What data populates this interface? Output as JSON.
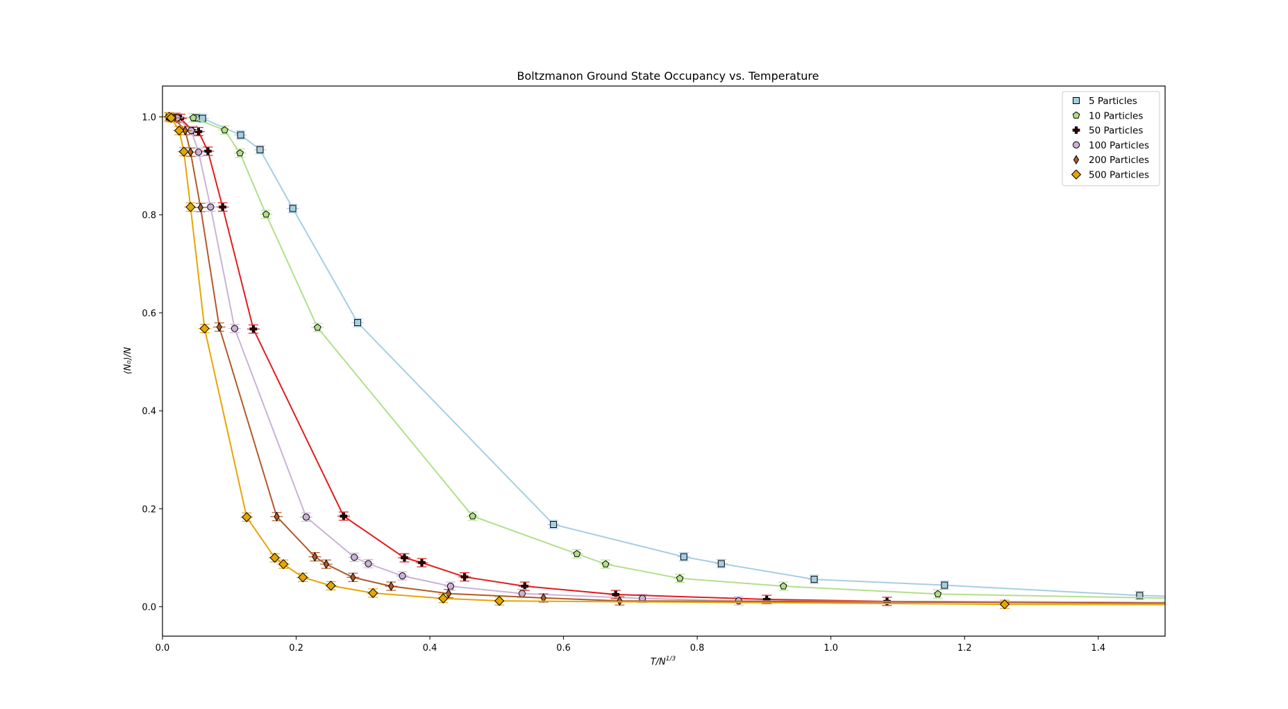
{
  "chart_data": {
    "type": "line",
    "title": "Boltzmanon Ground State Occupancy vs. Temperature",
    "xlabel_main": "T/N",
    "xlabel_sup": "1/3",
    "ylabel": "⟨N₀⟩/N",
    "xlim": [
      0.0,
      1.5
    ],
    "ylim": [
      -0.06,
      1.063
    ],
    "xticks": [
      "0.0",
      "0.2",
      "0.4",
      "0.6",
      "0.8",
      "1.0",
      "1.2",
      "1.4"
    ],
    "yticks": [
      "0.0",
      "0.2",
      "0.4",
      "0.6",
      "0.8",
      "1.0"
    ],
    "xtick_values": [
      0.0,
      0.2,
      0.4,
      0.6,
      0.8,
      1.0,
      1.2,
      1.4
    ],
    "ytick_values": [
      0.0,
      0.2,
      0.4,
      0.6,
      0.8,
      1.0
    ],
    "grid": false,
    "legend_position": "top-right",
    "series": [
      {
        "name": "5 Particles",
        "marker": "square",
        "line_color": "#a6cee3",
        "marker_color": "#a6cee3",
        "x": [
          0.0,
          0.01,
          0.02,
          0.05,
          0.06,
          0.117,
          0.146,
          0.195,
          0.292,
          0.585,
          0.78,
          0.836,
          0.975,
          1.17,
          1.462,
          1.6
        ],
        "y": [
          1.0,
          1.0,
          0.999,
          0.998,
          0.997,
          0.963,
          0.933,
          0.813,
          0.58,
          0.168,
          0.102,
          0.088,
          0.056,
          0.044,
          0.023,
          0.018
        ]
      },
      {
        "name": "10 Particles",
        "marker": "pentagon",
        "line_color": "#b2df8a",
        "marker_color": "#b2df8a",
        "x": [
          0.0,
          0.01,
          0.02,
          0.046,
          0.093,
          0.116,
          0.155,
          0.232,
          0.464,
          0.62,
          0.663,
          0.774,
          0.929,
          1.16,
          1.6
        ],
        "y": [
          1.0,
          1.0,
          0.999,
          0.998,
          0.973,
          0.926,
          0.801,
          0.57,
          0.185,
          0.108,
          0.087,
          0.058,
          0.042,
          0.026,
          0.015
        ]
      },
      {
        "name": "50 Particles",
        "marker": "plus",
        "line_color": "#e31a1c",
        "marker_color": "#e31a1c",
        "x": [
          0.0,
          0.01,
          0.02,
          0.027,
          0.045,
          0.054,
          0.068,
          0.09,
          0.136,
          0.271,
          0.362,
          0.388,
          0.452,
          0.542,
          0.678,
          0.904,
          1.084,
          1.6
        ],
        "y": [
          1.0,
          1.0,
          0.999,
          0.997,
          0.972,
          0.97,
          0.93,
          0.816,
          0.567,
          0.185,
          0.1,
          0.09,
          0.061,
          0.042,
          0.025,
          0.015,
          0.011,
          0.008
        ]
      },
      {
        "name": "100 Particles",
        "marker": "circle",
        "line_color": "#cab2d6",
        "marker_color": "#cab2d6",
        "x": [
          0.0,
          0.01,
          0.022,
          0.043,
          0.054,
          0.072,
          0.108,
          0.215,
          0.287,
          0.308,
          0.359,
          0.431,
          0.538,
          0.718,
          0.862,
          1.6
        ],
        "y": [
          1.0,
          1.0,
          0.998,
          0.972,
          0.928,
          0.816,
          0.568,
          0.183,
          0.101,
          0.088,
          0.063,
          0.042,
          0.027,
          0.017,
          0.012,
          0.008
        ]
      },
      {
        "name": "200 Particles",
        "marker": "thin-diamond",
        "line_color": "#b15928",
        "marker_color": "#b15928",
        "x": [
          0.0,
          0.01,
          0.017,
          0.034,
          0.042,
          0.057,
          0.085,
          0.171,
          0.228,
          0.245,
          0.285,
          0.342,
          0.428,
          0.57,
          0.684,
          1.6
        ],
        "y": [
          1.0,
          1.0,
          0.998,
          0.972,
          0.928,
          0.815,
          0.571,
          0.184,
          0.102,
          0.087,
          0.06,
          0.042,
          0.027,
          0.018,
          0.012,
          0.007
        ]
      },
      {
        "name": "500 Particles",
        "marker": "diamond",
        "line_color": "#e6a500",
        "marker_color": "#e6a500",
        "x": [
          0.0,
          0.01,
          0.013,
          0.025,
          0.032,
          0.042,
          0.063,
          0.126,
          0.168,
          0.181,
          0.21,
          0.252,
          0.315,
          0.42,
          0.504,
          1.26,
          1.6
        ],
        "y": [
          1.0,
          1.0,
          0.998,
          0.972,
          0.929,
          0.816,
          0.568,
          0.183,
          0.1,
          0.087,
          0.06,
          0.043,
          0.028,
          0.017,
          0.012,
          0.005,
          0.004
        ]
      }
    ]
  }
}
